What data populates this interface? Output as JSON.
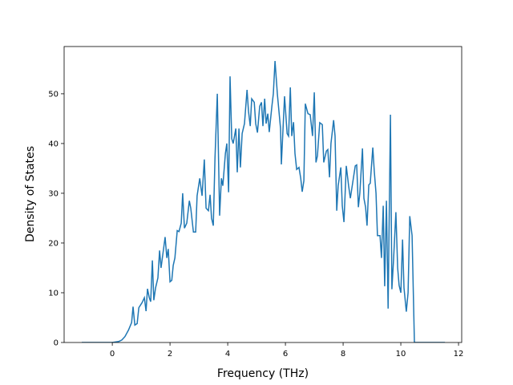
{
  "chart_data": {
    "type": "line",
    "xlabel": "Frequency (THz)",
    "ylabel": "Density of States",
    "color": "#1f77b4",
    "x": [
      -1.06,
      0,
      0.22,
      0.33,
      0.44,
      0.56,
      0.67,
      0.72,
      0.78,
      0.86,
      0.92,
      1.03,
      1.11,
      1.17,
      1.22,
      1.28,
      1.33,
      1.39,
      1.44,
      1.5,
      1.58,
      1.64,
      1.69,
      1.78,
      1.83,
      1.89,
      1.94,
      2.0,
      2.06,
      2.11,
      2.17,
      2.25,
      2.31,
      2.39,
      2.44,
      2.5,
      2.58,
      2.67,
      2.72,
      2.81,
      2.89,
      2.94,
      3.03,
      3.11,
      3.19,
      3.25,
      3.33,
      3.39,
      3.44,
      3.5,
      3.56,
      3.64,
      3.72,
      3.78,
      3.83,
      3.92,
      3.97,
      4.03,
      4.08,
      4.14,
      4.19,
      4.28,
      4.33,
      4.39,
      4.44,
      4.5,
      4.58,
      4.67,
      4.72,
      4.78,
      4.83,
      4.92,
      4.97,
      5.03,
      5.11,
      5.17,
      5.22,
      5.28,
      5.33,
      5.39,
      5.44,
      5.53,
      5.58,
      5.64,
      5.72,
      5.83,
      5.86,
      5.97,
      6.06,
      6.11,
      6.17,
      6.22,
      6.28,
      6.33,
      6.39,
      6.47,
      6.53,
      6.58,
      6.64,
      6.69,
      6.78,
      6.86,
      6.94,
      7.0,
      7.06,
      7.11,
      7.19,
      7.28,
      7.33,
      7.42,
      7.47,
      7.53,
      7.58,
      7.67,
      7.72,
      7.78,
      7.83,
      7.92,
      7.97,
      8.03,
      8.11,
      8.19,
      8.25,
      8.33,
      8.42,
      8.47,
      8.53,
      8.58,
      8.67,
      8.72,
      8.78,
      8.83,
      8.89,
      8.94,
      9.03,
      9.08,
      9.14,
      9.19,
      9.28,
      9.33,
      9.39,
      9.44,
      9.5,
      9.56,
      9.64,
      9.69,
      9.75,
      9.83,
      9.89,
      9.94,
      10.0,
      10.06,
      10.11,
      10.19,
      10.25,
      10.31,
      10.39,
      10.47,
      11.53
    ],
    "values": [
      0,
      0,
      0.2,
      0.5,
      1.2,
      2.5,
      4,
      7.2,
      3.5,
      3.8,
      7,
      8,
      9,
      6.3,
      10.8,
      9,
      8.2,
      16.5,
      8.5,
      11,
      13,
      18.5,
      15,
      19,
      21.2,
      17,
      18.8,
      12.2,
      12.5,
      15.5,
      17,
      22.5,
      22.3,
      24,
      30,
      23,
      24,
      28.5,
      27,
      22.2,
      22.2,
      29.5,
      33,
      29.5,
      36.8,
      27,
      26.5,
      29.7,
      25,
      23.5,
      37,
      50,
      25.5,
      33,
      31.5,
      38,
      40,
      30.2,
      53.5,
      41,
      40,
      43,
      34.2,
      43,
      35.2,
      42,
      44,
      50.8,
      46.5,
      43.5,
      49,
      48.3,
      44,
      42.2,
      47.5,
      48.3,
      43.5,
      49,
      44,
      46,
      42.3,
      47.5,
      50,
      56.6,
      50,
      43,
      35.8,
      49.5,
      42,
      41.5,
      51.3,
      41.5,
      44.3,
      38,
      34.8,
      35.2,
      33,
      30.3,
      32.5,
      48,
      46,
      45.8,
      41.5,
      50.3,
      36.2,
      37.5,
      44.2,
      43.8,
      36.2,
      38.5,
      38.8,
      33.2,
      40,
      44.7,
      41.5,
      26.5,
      31.5,
      35.2,
      27.5,
      24.2,
      35.5,
      31.5,
      29,
      32,
      35.5,
      35.7,
      27.2,
      30,
      39,
      29,
      27.2,
      23.5,
      31.7,
      32,
      39.2,
      34.5,
      30,
      21.5,
      21.5,
      17,
      27.5,
      11.3,
      28.5,
      6.8,
      45.8,
      10.7,
      17,
      26.2,
      15,
      11.5,
      10,
      20.7,
      11,
      6.2,
      10,
      25.4,
      21.5,
      0,
      0
    ],
    "xlim": [
      -1.67,
      12.11
    ],
    "ylim": [
      0,
      59.5
    ],
    "xticks": [
      0,
      2,
      4,
      6,
      8,
      10,
      12
    ],
    "yticks": [
      0,
      10,
      20,
      30,
      40,
      50
    ]
  }
}
